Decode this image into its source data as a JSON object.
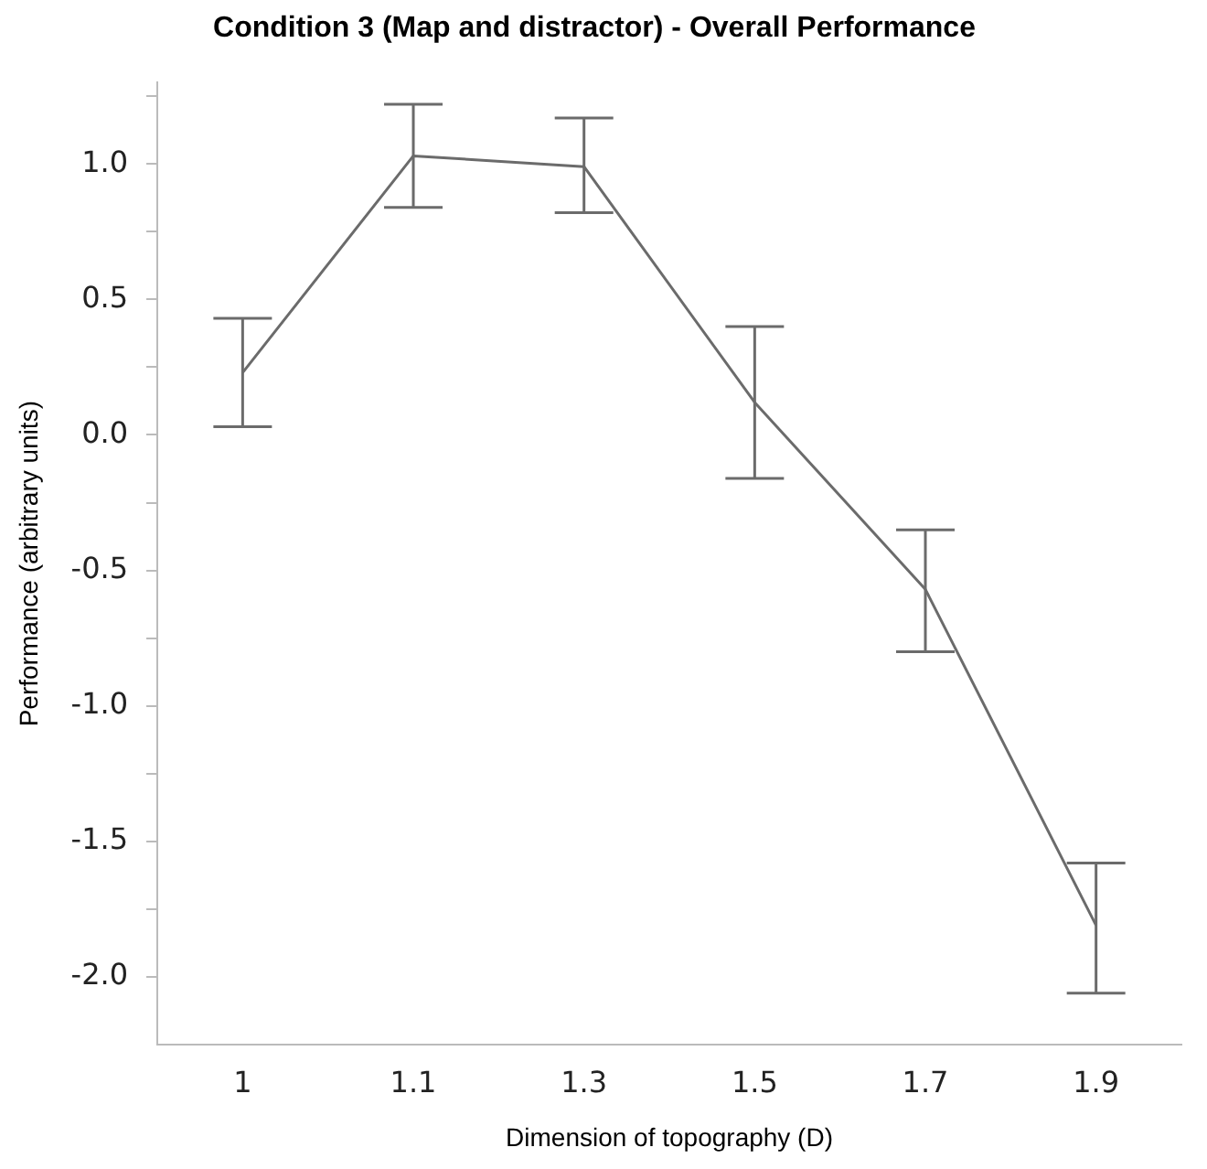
{
  "chart_data": {
    "type": "line",
    "title": "Condition 3 (Map and distractor) - Overall Performance",
    "xlabel": "Dimension of topography (D)",
    "ylabel": "Performance (arbitrary units)",
    "categories": [
      "1",
      "1.1",
      "1.3",
      "1.5",
      "1.7",
      "1.9"
    ],
    "series": [
      {
        "color": "#6b6b6b",
        "values": [
          0.23,
          1.03,
          0.99,
          0.12,
          -0.57,
          -1.81
        ],
        "errors": [
          [
            0.03,
            0.43
          ],
          [
            0.84,
            1.22
          ],
          [
            0.82,
            1.17
          ],
          [
            -0.16,
            0.4
          ],
          [
            -0.8,
            -0.35
          ],
          [
            -2.06,
            -1.58
          ]
        ]
      }
    ],
    "ylim": [
      -2.25,
      1.3
    ],
    "yticks": [
      {
        "value": -2,
        "label": "-2.0"
      },
      {
        "value": -1.75,
        "label": null
      },
      {
        "value": -1.5,
        "label": "-1.5"
      },
      {
        "value": -1.25,
        "label": null
      },
      {
        "value": -1,
        "label": "-1.0"
      },
      {
        "value": -0.75,
        "label": null
      },
      {
        "value": -0.5,
        "label": "-0.5"
      },
      {
        "value": -0.25,
        "label": null
      },
      {
        "value": 0,
        "label": "0.0"
      },
      {
        "value": 0.25,
        "label": null
      },
      {
        "value": 0.5,
        "label": "0.5"
      },
      {
        "value": 0.75,
        "label": null
      },
      {
        "value": 1,
        "label": "1.0"
      },
      {
        "value": 1.25,
        "label": null
      }
    ],
    "grid": false,
    "legend": false,
    "marker": "none",
    "line_style": "solid"
  }
}
